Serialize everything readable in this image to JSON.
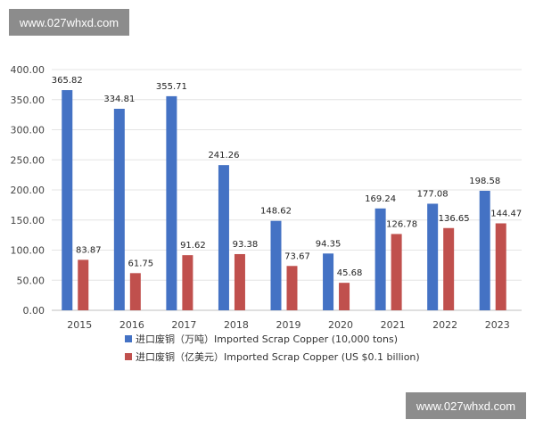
{
  "watermark": {
    "top": "www.027whxd.com",
    "bottom": "www.027whxd.com"
  },
  "chart_data": {
    "type": "bar",
    "title": "",
    "xlabel": "",
    "ylabel": "",
    "ylim": [
      0,
      400
    ],
    "yticks": [
      "0.00",
      "50.00",
      "100.00",
      "150.00",
      "200.00",
      "250.00",
      "300.00",
      "350.00",
      "400.00"
    ],
    "categories": [
      "2015",
      "2016",
      "2017",
      "2018",
      "2019",
      "2020",
      "2021",
      "2022",
      "2023"
    ],
    "series": [
      {
        "name": "进口废铜（万吨）Imported Scrap Copper (10,000 tons)",
        "color": "#4472c4",
        "values": [
          365.82,
          334.81,
          355.71,
          241.26,
          148.62,
          94.35,
          169.24,
          177.08,
          198.58
        ],
        "labels": [
          "365.82",
          "334.81",
          "355.71",
          "241.26",
          "148.62",
          "94.35",
          "169.24",
          "177.08",
          "198.58"
        ]
      },
      {
        "name": "进口废铜（亿美元）Imported Scrap Copper (US $0.1 billion)",
        "color": "#c0504d",
        "values": [
          83.87,
          61.75,
          91.62,
          93.38,
          73.67,
          45.68,
          126.78,
          136.65,
          144.47
        ],
        "labels": [
          "83.87",
          "61.75",
          "91.62",
          "93.38",
          "73.67",
          "45.68",
          "126.78",
          "136.65",
          "144.47"
        ]
      }
    ],
    "grid": true,
    "legend": "bottom"
  }
}
